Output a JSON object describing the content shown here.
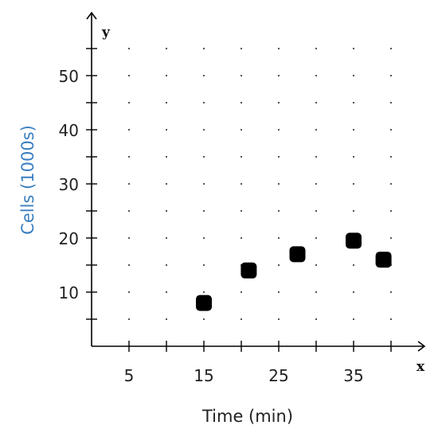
{
  "chart_data": {
    "type": "scatter",
    "title": "",
    "xlabel": "Time (min)",
    "ylabel": "Cells (1000s)",
    "x_axis_letter": "x",
    "y_axis_letter": "y",
    "xlim": [
      0,
      40
    ],
    "ylim": [
      0,
      55
    ],
    "x_ticks": [
      5,
      15,
      25,
      35
    ],
    "y_ticks": [
      10,
      20,
      30,
      40,
      50
    ],
    "x_minor_step": 5,
    "y_minor_step": 5,
    "grid": "dotted",
    "series": [
      {
        "x": [
          15,
          21,
          27.5,
          35,
          39
        ],
        "y": [
          8,
          14,
          17,
          19.5,
          16
        ]
      }
    ],
    "colors": {
      "axis": "#000000",
      "grid_dots": "#444444",
      "points": "#000000",
      "ylabel": "#3a7fc1",
      "xlabel": "#222222"
    }
  }
}
